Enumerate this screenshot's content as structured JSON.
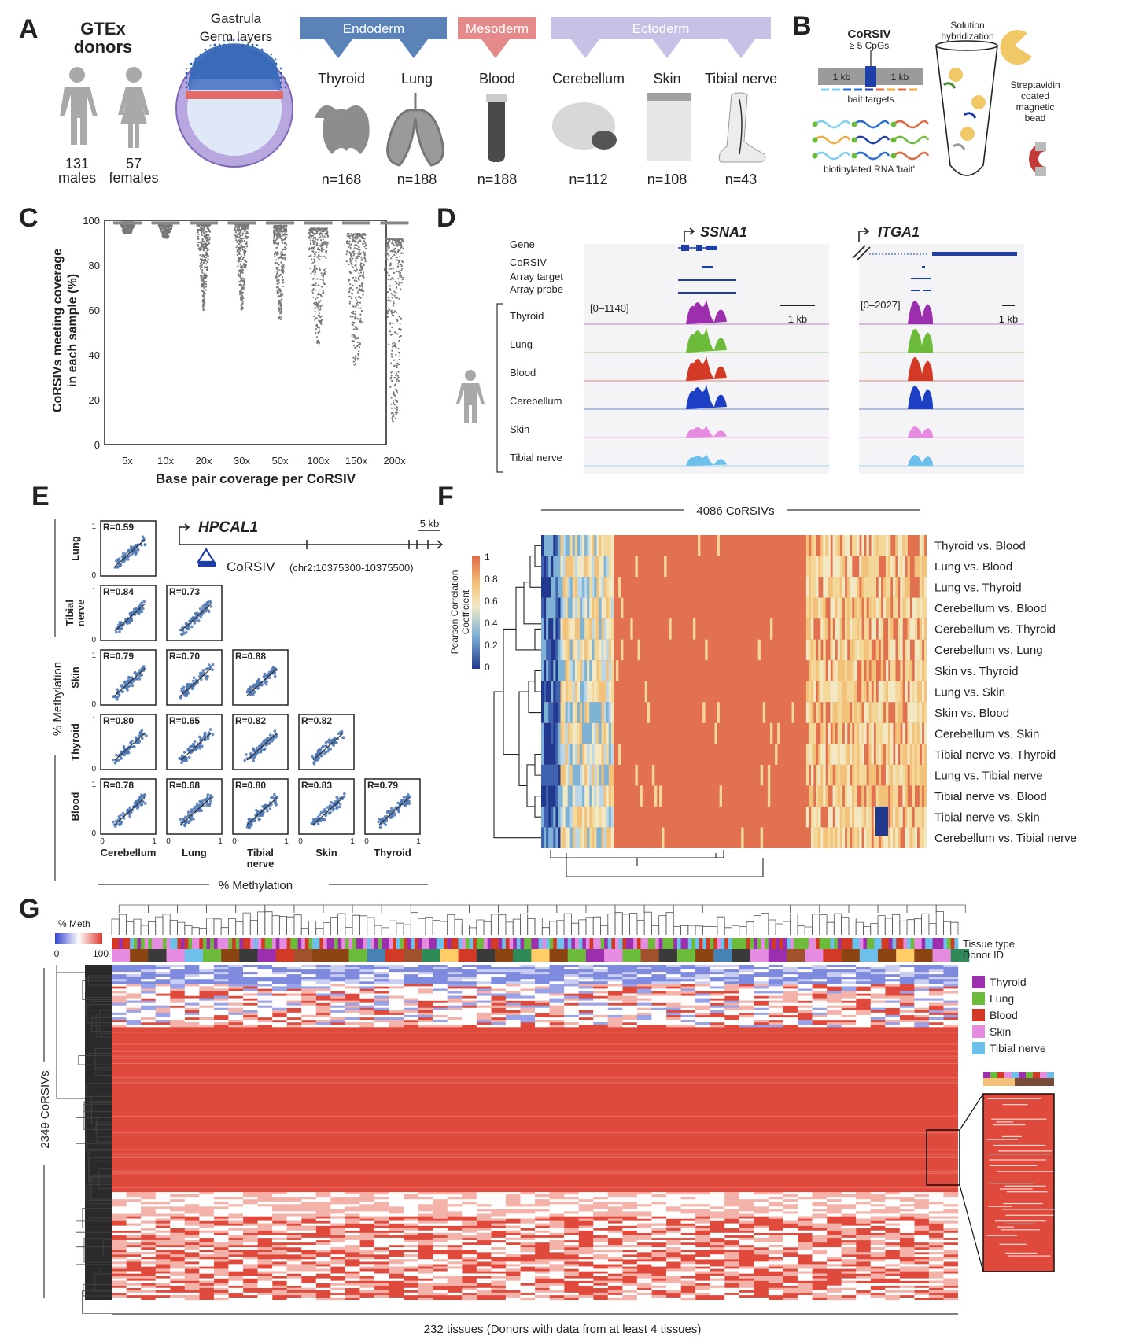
{
  "panel_labels": [
    "A",
    "B",
    "C",
    "D",
    "E",
    "F",
    "G"
  ],
  "panelA": {
    "donors_title": [
      "GTEx",
      "donors"
    ],
    "males": [
      "131",
      "males"
    ],
    "females": [
      "57",
      "females"
    ],
    "gastrula_title": [
      "Gastrula",
      "Germ layers"
    ],
    "germ_layers": [
      "Endoderm",
      "Mesoderm",
      "Ectoderm"
    ],
    "tissues": [
      {
        "name": "Thyroid",
        "n": "n=168"
      },
      {
        "name": "Lung",
        "n": "n=188"
      },
      {
        "name": "Blood",
        "n": "n=188"
      },
      {
        "name": "Cerebellum",
        "n": "n=112"
      },
      {
        "name": "Skin",
        "n": "n=108"
      },
      {
        "name": "Tibial nerve",
        "n": "n=43"
      }
    ]
  },
  "panelB": {
    "corsiv": "CoRSIV",
    "cpgs": "≥ 5 CpGs",
    "flank_left": "1 kb",
    "flank_right": "1 kb",
    "bait_targets": "bait targets",
    "bait_label": "biotinylated RNA 'bait'",
    "solution": [
      "Solution",
      "hybridization"
    ],
    "bead": [
      "Streptavidin",
      "coated",
      "magnetic",
      "bead"
    ]
  },
  "panelC": {
    "chart_data": {
      "type": "scatter",
      "xlabel": "Base pair coverage per CoRSIV",
      "ylabel": "CoRSIVs meeting coverage in each sample (%)",
      "ylabel_lines": [
        "CoRSIVs meeting coverage",
        "in each sample (%)"
      ],
      "categories": [
        "5x",
        "10x",
        "20x",
        "30x",
        "50x",
        "100x",
        "150x",
        "200x"
      ],
      "yticks": [
        "0",
        "20",
        "40",
        "60",
        "80",
        "100"
      ],
      "ylim": [
        0,
        100
      ],
      "distribution_median": [
        98,
        97.5,
        96.5,
        96,
        94,
        91,
        85,
        79
      ],
      "distribution_min": [
        94,
        92,
        60,
        60,
        55,
        45,
        35,
        10
      ]
    }
  },
  "panelD": {
    "genes": [
      "SSNA1",
      "ITGA1"
    ],
    "track_labels": [
      "Gene",
      "CoRSIV",
      "Array target",
      "Array probe"
    ],
    "tissue_tracks": [
      "Thyroid",
      "Lung",
      "Blood",
      "Cerebellum",
      "Skin",
      "Tibial nerve"
    ],
    "ranges": [
      "[0–1140]",
      "[0–2027]"
    ],
    "scale": "1 kb",
    "track_colors": [
      "#9b2fae",
      "#6dbb3b",
      "#d33a25",
      "#1c3fc4",
      "#e68ce0",
      "#6cc0ea"
    ]
  },
  "panelE": {
    "gene": "HPCAL1",
    "scale": "5 kb",
    "corsiv": "CoRSIV",
    "coords": "(chr2:10375300-10375500)",
    "row_labels": [
      "Lung",
      "Tibial nerve",
      "Skin",
      "Thyroid",
      "Blood"
    ],
    "col_labels": [
      "Cerebellum",
      "Lung",
      "Tibial nerve",
      "Skin",
      "Thyroid"
    ],
    "axis_label": "% Methylation",
    "ticks": [
      "0",
      "1"
    ],
    "matrix": [
      [
        "R=0.59"
      ],
      [
        "R=0.84",
        "R=0.73"
      ],
      [
        "R=0.79",
        "R=0.70",
        "R=0.88"
      ],
      [
        "R=0.80",
        "R=0.65",
        "R=0.82",
        "R=0.82"
      ],
      [
        "R=0.78",
        "R=0.68",
        "R=0.80",
        "R=0.83",
        "R=0.79"
      ]
    ]
  },
  "panelF": {
    "title": "4086 CoRSIVs",
    "legend_title": [
      "Pearson Correlation",
      "Coefficient"
    ],
    "legend_ticks": [
      "1",
      "0.8",
      "0.6",
      "0.4",
      "0.2",
      "0"
    ],
    "rows": [
      "Thyroid vs. Blood",
      "Lung vs. Blood",
      "Lung vs. Thyroid",
      "Cerebellum vs. Blood",
      "Cerebellum vs. Thyroid",
      "Cerebellum vs. Lung",
      "Skin vs. Thyroid",
      "Lung vs. Skin",
      "Skin vs. Blood",
      "Cerebellum vs. Skin",
      "Tibial nerve vs. Thyroid",
      "Lung vs. Tibial nerve",
      "Tibial nerve vs. Blood",
      "Tibial nerve vs. Skin",
      "Cerebellum vs. Tibial nerve"
    ]
  },
  "panelG": {
    "legend_title": "% Meth",
    "legend_ticks": [
      "0",
      "100"
    ],
    "annot_labels": [
      "Tissue type",
      "Donor ID"
    ],
    "tissue_legend": [
      {
        "name": "Thyroid",
        "color": "#9b2fae"
      },
      {
        "name": "Lung",
        "color": "#6dbb3b"
      },
      {
        "name": "Blood",
        "color": "#d33a25"
      },
      {
        "name": "Skin",
        "color": "#e68ce0"
      },
      {
        "name": "Tibial nerve",
        "color": "#6cc0ea"
      }
    ],
    "row_label": "2349 CoRSIVs",
    "col_label": "232 tissues (Donors with data from at least 4 tissues)"
  }
}
